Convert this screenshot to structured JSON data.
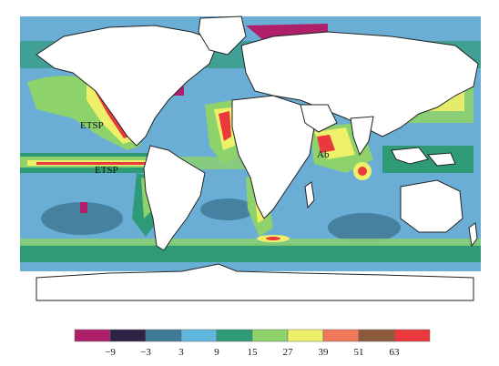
{
  "map": {
    "labels": [
      {
        "id": "etsp-north",
        "text": "ETSP"
      },
      {
        "id": "etsp-south",
        "text": "ETSP"
      },
      {
        "id": "arabian",
        "text": "Ab"
      }
    ]
  },
  "legend": {
    "colors": [
      "#b0206a",
      "#2c2346",
      "#3f7a97",
      "#5fb7de",
      "#2f9a78",
      "#8ed26b",
      "#eef06a",
      "#f0795a",
      "#8a5a3a",
      "#e9393c"
    ],
    "tick_labels": [
      "−9",
      "−3",
      "3",
      "9",
      "15",
      "27",
      "39",
      "51",
      "63"
    ]
  },
  "colors": {
    "ocean_base": "#6aaed6",
    "ocean_dark": "#3f7a97",
    "coastal_green": "#2f9a78",
    "light_green": "#8ed26b",
    "yellow": "#eef06a",
    "red": "#e9393c",
    "magenta": "#b0206a",
    "land": "#ffffff"
  }
}
